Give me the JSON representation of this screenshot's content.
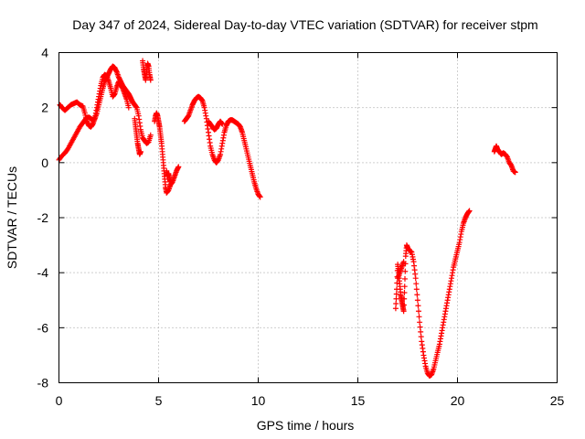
{
  "chart_data": {
    "type": "scatter",
    "title": "Day 347 of 2024, Sidereal Day-to-day VTEC variation (SDTVAR) for receiver stpm",
    "xlabel": "GPS time / hours",
    "ylabel": "SDTVAR / TECUs",
    "xlim": [
      0,
      25
    ],
    "ylim": [
      -8,
      4
    ],
    "xticks": [
      0,
      5,
      10,
      15,
      20,
      25
    ],
    "yticks": [
      -8,
      -6,
      -4,
      -2,
      0,
      2,
      4
    ],
    "xtick_labels": [
      "0",
      "5",
      "10",
      "15",
      "20",
      "25"
    ],
    "ytick_labels": [
      "-8",
      "-6",
      "-4",
      "-2",
      "0",
      "2",
      "4"
    ],
    "grid": true,
    "marker": "+",
    "series": [
      {
        "color": "#ff0000",
        "segments": [
          [
            [
              0.0,
              0.1
            ],
            [
              0.15,
              0.25
            ],
            [
              0.3,
              0.35
            ],
            [
              0.45,
              0.5
            ],
            [
              0.6,
              0.7
            ],
            [
              0.75,
              0.9
            ],
            [
              0.9,
              1.1
            ],
            [
              1.05,
              1.3
            ],
            [
              1.2,
              1.45
            ],
            [
              1.35,
              1.6
            ],
            [
              1.5,
              1.65
            ],
            [
              1.6,
              1.6
            ],
            [
              1.7,
              1.55
            ],
            [
              1.8,
              1.6
            ],
            [
              1.9,
              1.8
            ],
            [
              2.0,
              2.1
            ],
            [
              2.1,
              2.4
            ],
            [
              2.2,
              2.7
            ],
            [
              2.3,
              2.95
            ],
            [
              2.4,
              3.1
            ],
            [
              2.5,
              3.25
            ],
            [
              2.6,
              3.4
            ],
            [
              2.7,
              3.5
            ],
            [
              2.8,
              3.45
            ],
            [
              2.9,
              3.3
            ],
            [
              3.0,
              3.1
            ],
            [
              3.1,
              2.95
            ],
            [
              3.2,
              2.8
            ],
            [
              3.35,
              2.65
            ],
            [
              3.5,
              2.5
            ],
            [
              3.6,
              2.35
            ],
            [
              3.7,
              2.2
            ],
            [
              3.8,
              2.1
            ],
            [
              3.9,
              2.0
            ],
            [
              4.0,
              1.7
            ],
            [
              4.1,
              1.2
            ],
            [
              4.2,
              0.9
            ],
            [
              4.3,
              0.8
            ],
            [
              4.4,
              0.7
            ],
            [
              4.5,
              0.75
            ],
            [
              4.6,
              1.0
            ]
          ],
          [
            [
              0.05,
              2.1
            ],
            [
              0.15,
              2.0
            ],
            [
              0.3,
              1.9
            ],
            [
              0.45,
              2.0
            ],
            [
              0.6,
              2.1
            ],
            [
              0.75,
              2.15
            ],
            [
              0.9,
              2.2
            ],
            [
              1.05,
              2.1
            ],
            [
              1.2,
              2.05
            ],
            [
              1.3,
              1.8
            ],
            [
              1.4,
              1.5
            ],
            [
              1.5,
              1.35
            ],
            [
              1.6,
              1.3
            ],
            [
              1.7,
              1.4
            ],
            [
              1.8,
              1.6
            ],
            [
              1.9,
              2.0
            ],
            [
              2.0,
              2.4
            ],
            [
              2.1,
              2.8
            ],
            [
              2.2,
              3.1
            ],
            [
              2.3,
              3.2
            ],
            [
              2.4,
              3.15
            ],
            [
              2.5,
              2.95
            ],
            [
              2.6,
              2.7
            ],
            [
              2.7,
              2.4
            ],
            [
              2.8,
              2.5
            ],
            [
              2.9,
              2.75
            ],
            [
              3.0,
              2.95
            ],
            [
              3.1,
              2.85
            ],
            [
              3.2,
              2.7
            ],
            [
              3.3,
              2.5
            ],
            [
              3.4,
              2.3
            ],
            [
              3.5,
              2.0
            ]
          ],
          [
            [
              3.8,
              1.6
            ],
            [
              3.85,
              1.3
            ],
            [
              3.9,
              1.0
            ],
            [
              3.95,
              0.7
            ],
            [
              4.0,
              0.5
            ],
            [
              4.05,
              0.3
            ],
            [
              4.1,
              0.4
            ]
          ],
          [
            [
              4.2,
              3.7
            ],
            [
              4.25,
              3.4
            ],
            [
              4.3,
              3.2
            ],
            [
              4.35,
              3.0
            ],
            [
              4.4,
              3.3
            ],
            [
              4.45,
              3.6
            ],
            [
              4.5,
              3.5
            ],
            [
              4.55,
              3.2
            ],
            [
              4.6,
              3.0
            ]
          ],
          [
            [
              4.8,
              1.5
            ],
            [
              4.85,
              1.7
            ],
            [
              4.9,
              1.8
            ],
            [
              4.95,
              1.7
            ],
            [
              5.0,
              1.5
            ],
            [
              5.05,
              1.3
            ],
            [
              5.1,
              1.0
            ],
            [
              5.15,
              0.7
            ],
            [
              5.2,
              0.3
            ],
            [
              5.25,
              -0.1
            ],
            [
              5.3,
              -0.5
            ],
            [
              5.35,
              -0.9
            ],
            [
              5.4,
              -1.1
            ],
            [
              5.5,
              -1.0
            ],
            [
              5.6,
              -0.8
            ],
            [
              5.7,
              -0.7
            ],
            [
              5.8,
              -0.5
            ],
            [
              5.9,
              -0.3
            ],
            [
              6.0,
              -0.15
            ]
          ],
          [
            [
              5.4,
              -0.3
            ],
            [
              5.45,
              -0.5
            ],
            [
              5.5,
              -0.4
            ],
            [
              5.55,
              -0.6
            ],
            [
              5.6,
              -0.7
            ]
          ],
          [
            [
              6.3,
              1.5
            ],
            [
              6.4,
              1.6
            ],
            [
              6.5,
              1.7
            ],
            [
              6.6,
              1.9
            ],
            [
              6.7,
              2.1
            ],
            [
              6.8,
              2.25
            ],
            [
              6.9,
              2.35
            ],
            [
              7.0,
              2.4
            ],
            [
              7.1,
              2.35
            ],
            [
              7.2,
              2.25
            ],
            [
              7.3,
              2.0
            ],
            [
              7.4,
              1.6
            ],
            [
              7.5,
              1.1
            ],
            [
              7.6,
              0.6
            ],
            [
              7.7,
              0.3
            ],
            [
              7.8,
              0.1
            ],
            [
              7.9,
              0.0
            ],
            [
              8.0,
              0.1
            ],
            [
              8.1,
              0.3
            ],
            [
              8.2,
              0.7
            ],
            [
              8.3,
              1.1
            ],
            [
              8.4,
              1.35
            ],
            [
              8.5,
              1.5
            ],
            [
              8.6,
              1.55
            ],
            [
              8.7,
              1.55
            ],
            [
              8.8,
              1.5
            ],
            [
              8.9,
              1.45
            ],
            [
              9.0,
              1.4
            ],
            [
              9.1,
              1.3
            ],
            [
              9.2,
              1.1
            ],
            [
              9.3,
              0.8
            ],
            [
              9.4,
              0.5
            ],
            [
              9.5,
              0.2
            ],
            [
              9.6,
              -0.1
            ],
            [
              9.7,
              -0.4
            ],
            [
              9.8,
              -0.7
            ],
            [
              9.9,
              -0.95
            ],
            [
              10.0,
              -1.15
            ],
            [
              10.1,
              -1.25
            ]
          ],
          [
            [
              7.5,
              1.5
            ],
            [
              7.6,
              1.4
            ],
            [
              7.7,
              1.3
            ],
            [
              7.8,
              1.2
            ],
            [
              7.9,
              1.25
            ],
            [
              8.0,
              1.4
            ],
            [
              8.1,
              1.5
            ],
            [
              8.2,
              1.4
            ]
          ],
          [
            [
              16.9,
              -5.3
            ],
            [
              16.95,
              -4.6
            ],
            [
              17.0,
              -3.7
            ],
            [
              17.05,
              -4.0
            ],
            [
              17.1,
              -4.4
            ],
            [
              17.15,
              -4.8
            ],
            [
              17.2,
              -5.0
            ],
            [
              17.25,
              -5.2
            ],
            [
              17.3,
              -5.4
            ],
            [
              17.35,
              -4.5
            ],
            [
              17.4,
              -3.4
            ],
            [
              17.45,
              -3.0
            ],
            [
              17.5,
              -3.1
            ],
            [
              17.6,
              -3.2
            ],
            [
              17.7,
              -3.25
            ],
            [
              17.8,
              -3.6
            ],
            [
              17.9,
              -4.2
            ],
            [
              18.0,
              -5.0
            ],
            [
              18.1,
              -5.8
            ],
            [
              18.2,
              -6.5
            ],
            [
              18.3,
              -7.0
            ],
            [
              18.4,
              -7.4
            ],
            [
              18.5,
              -7.65
            ],
            [
              18.6,
              -7.75
            ],
            [
              18.7,
              -7.7
            ],
            [
              18.8,
              -7.5
            ],
            [
              18.9,
              -7.2
            ],
            [
              19.0,
              -6.9
            ],
            [
              19.1,
              -6.6
            ],
            [
              19.2,
              -6.2
            ],
            [
              19.3,
              -5.8
            ],
            [
              19.4,
              -5.4
            ],
            [
              19.5,
              -5.0
            ],
            [
              19.6,
              -4.6
            ],
            [
              19.7,
              -4.2
            ],
            [
              19.8,
              -3.8
            ],
            [
              19.9,
              -3.5
            ],
            [
              20.0,
              -3.2
            ],
            [
              20.1,
              -2.9
            ],
            [
              20.2,
              -2.5
            ],
            [
              20.3,
              -2.2
            ],
            [
              20.4,
              -2.0
            ],
            [
              20.5,
              -1.85
            ],
            [
              20.6,
              -1.75
            ]
          ],
          [
            [
              17.0,
              -4.2
            ],
            [
              17.1,
              -4.0
            ],
            [
              17.2,
              -3.8
            ],
            [
              17.3,
              -3.6
            ]
          ],
          [
            [
              21.85,
              0.4
            ],
            [
              21.9,
              0.5
            ],
            [
              21.95,
              0.6
            ],
            [
              22.0,
              0.5
            ],
            [
              22.1,
              0.4
            ],
            [
              22.2,
              0.3
            ],
            [
              22.3,
              0.35
            ],
            [
              22.4,
              0.3
            ],
            [
              22.5,
              0.2
            ],
            [
              22.6,
              0.0
            ],
            [
              22.7,
              -0.1
            ],
            [
              22.8,
              -0.3
            ],
            [
              22.9,
              -0.35
            ]
          ]
        ]
      }
    ]
  }
}
